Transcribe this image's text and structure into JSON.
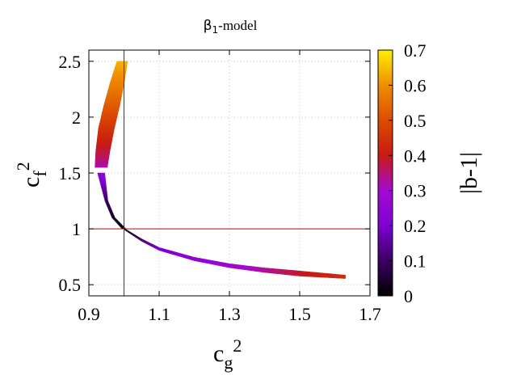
{
  "chart_data": {
    "type": "scatter",
    "title": "β₁-model",
    "title_main": "β",
    "title_sub": "1",
    "title_rest": "-model",
    "xlabel": "c_g^2",
    "xlabel_base": "c",
    "xlabel_sub": "g",
    "xlabel_sup": "2",
    "ylabel": "c_f^2",
    "ylabel_base": "c",
    "ylabel_sub": "f",
    "ylabel_sup": "2",
    "xlim": [
      0.9,
      1.7
    ],
    "ylim": [
      0.4,
      2.6
    ],
    "xticks": [
      "0.9",
      "1.1",
      "1.3",
      "1.5",
      "1.7"
    ],
    "yticks": [
      "0.5",
      "1",
      "1.5",
      "2",
      "2.5"
    ],
    "grid": true,
    "colorbar": {
      "label": "|b-1|",
      "range": [
        0,
        0.7
      ],
      "ticks": [
        "0",
        "0.1",
        "0.2",
        "0.3",
        "0.4",
        "0.5",
        "0.6",
        "0.7"
      ],
      "colormap": "gnuplot-pm3d"
    },
    "reference_lines": {
      "x": 1.0,
      "y": 1.0,
      "color": "#cc0000"
    },
    "band_upper": [
      {
        "x": 0.935,
        "y": 1.55,
        "width": 0.035,
        "b": 0.32
      },
      {
        "x": 0.94,
        "y": 1.7,
        "width": 0.04,
        "b": 0.38
      },
      {
        "x": 0.95,
        "y": 1.9,
        "width": 0.045,
        "b": 0.45
      },
      {
        "x": 0.965,
        "y": 2.1,
        "width": 0.045,
        "b": 0.52
      },
      {
        "x": 0.98,
        "y": 2.3,
        "width": 0.04,
        "b": 0.58
      },
      {
        "x": 0.995,
        "y": 2.5,
        "width": 0.03,
        "b": 0.64
      }
    ],
    "band_lower": [
      {
        "x": 0.935,
        "y": 1.5,
        "width": 0.02,
        "b": 0.25
      },
      {
        "x": 0.95,
        "y": 1.25,
        "width": 0.008,
        "b": 0.1
      },
      {
        "x": 0.97,
        "y": 1.1,
        "width": 0.008,
        "b": 0.04
      },
      {
        "x": 1.0,
        "y": 1.0,
        "width": 0.01,
        "b": 0.0
      },
      {
        "x": 1.05,
        "y": 0.9,
        "width": 0.02,
        "b": 0.12
      },
      {
        "x": 1.1,
        "y": 0.82,
        "width": 0.025,
        "b": 0.2
      },
      {
        "x": 1.2,
        "y": 0.73,
        "width": 0.03,
        "b": 0.24
      },
      {
        "x": 1.3,
        "y": 0.67,
        "width": 0.035,
        "b": 0.28
      },
      {
        "x": 1.4,
        "y": 0.63,
        "width": 0.04,
        "b": 0.33
      },
      {
        "x": 1.5,
        "y": 0.6,
        "width": 0.045,
        "b": 0.39
      },
      {
        "x": 1.63,
        "y": 0.57,
        "width": 0.03,
        "b": 0.44
      }
    ]
  }
}
